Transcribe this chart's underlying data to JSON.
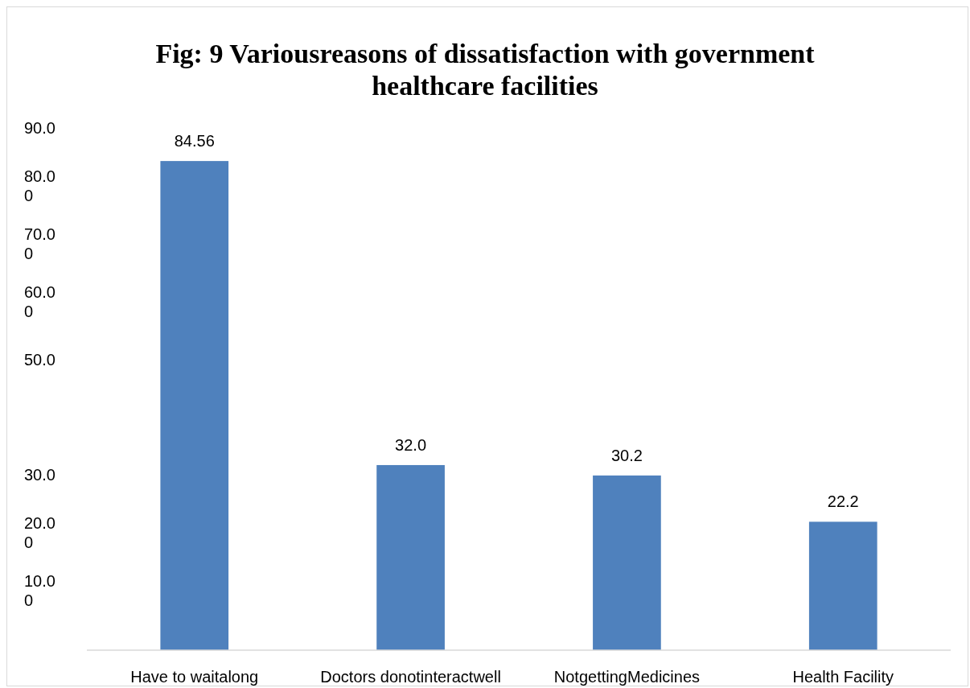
{
  "chart_data": {
    "type": "bar",
    "title": "Fig: 9 Variousreasons of dissatisfaction with government healthcare facilities",
    "categories": [
      "Have to waitalong",
      "Doctors donotinteractwell",
      "NotgettingMedicines",
      "Health Facility"
    ],
    "values": [
      84.56,
      32.0,
      30.2,
      22.2
    ],
    "value_labels": [
      "84.56",
      "32.0",
      "30.2",
      "22.2"
    ],
    "color": "#4f81bd",
    "ylim": [
      0,
      90
    ],
    "yticks": [
      {
        "value": 90,
        "label": "90.0"
      },
      {
        "value": 80,
        "label": "80.00"
      },
      {
        "value": 70,
        "label": "70.00"
      },
      {
        "value": 60,
        "label": "60.00"
      },
      {
        "value": 50,
        "label": "50.0"
      },
      {
        "value": 30,
        "label": "30.0"
      },
      {
        "value": 20,
        "label": "20.00"
      },
      {
        "value": 10,
        "label": "10.00"
      }
    ],
    "grid": false
  }
}
